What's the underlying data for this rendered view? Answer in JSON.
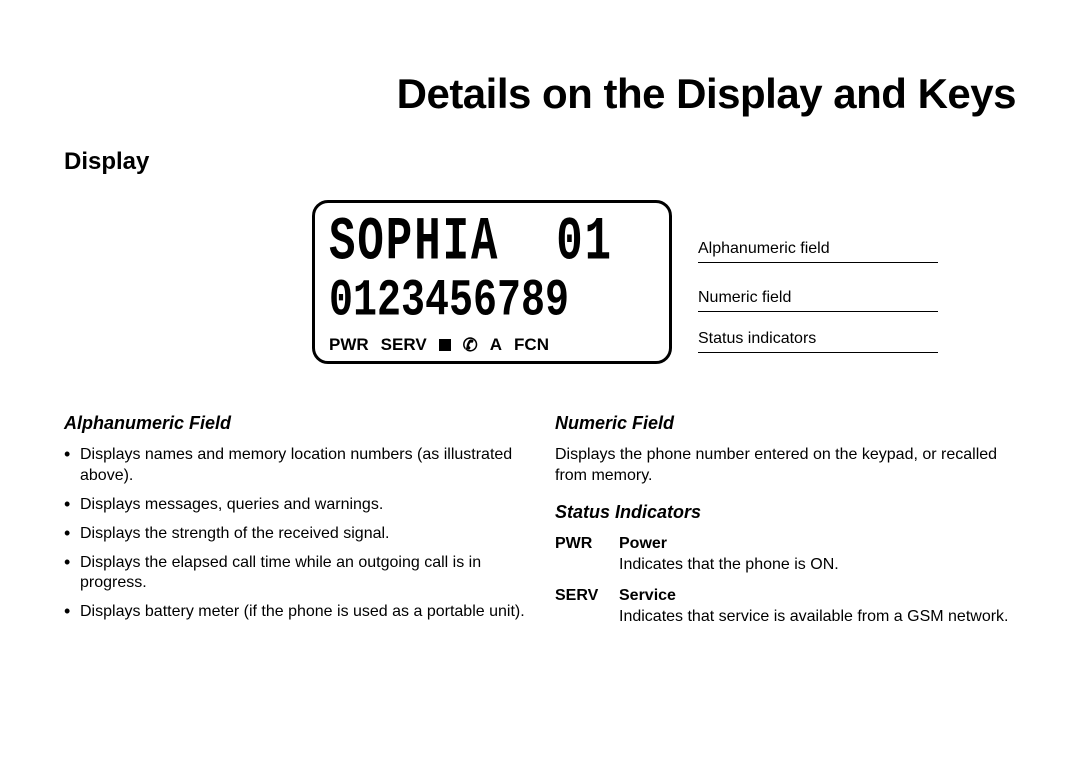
{
  "page": {
    "title": "Details on the Display and Keys",
    "section": "Display"
  },
  "lcd": {
    "alpha_text": "SOPHIA  01",
    "numeric_text": "0123456789",
    "status": {
      "pwr": "PWR",
      "serv": "SERV",
      "arrow": "A",
      "fcn": "FCN"
    }
  },
  "callouts": {
    "alpha": "Alphanumeric field",
    "numeric": "Numeric field",
    "status": "Status indicators"
  },
  "left": {
    "heading": "Alphanumeric Field",
    "bullets": [
      "Displays names and memory location numbers (as illustrated above).",
      "Displays messages, queries and warnings.",
      "Displays the strength of the received signal.",
      "Displays the elapsed call time while an outgoing call is in progress.",
      "Displays battery meter (if the phone is used as a portable unit)."
    ]
  },
  "right": {
    "numeric_heading": "Numeric Field",
    "numeric_text": "Displays the phone number entered on the keypad, or recalled from memory.",
    "status_heading": "Status Indicators",
    "indicators": [
      {
        "label": "PWR",
        "name": "Power",
        "desc": "Indicates that the phone is ON."
      },
      {
        "label": "SERV",
        "name": "Service",
        "desc": "Indicates that service is available from a GSM network."
      }
    ]
  }
}
